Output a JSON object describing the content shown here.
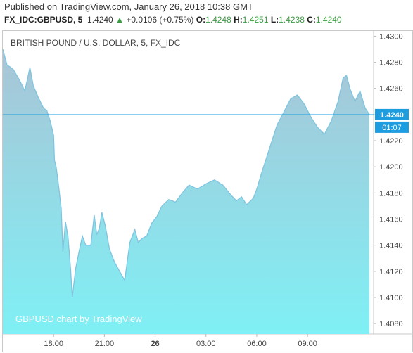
{
  "header": {
    "published": "Published on TradingView.com, January 26, 2018 10:38 GMT",
    "symbol": "FX_IDC:GBPUSD, 5",
    "last": "1.4240",
    "change_arrow": "▲",
    "change": "+0.0106 (+0.75%)",
    "o_label": "O:",
    "o_value": "1.4248",
    "h_label": "H:",
    "h_value": "1.4251",
    "l_label": "L:",
    "l_value": "1.4238",
    "c_label": "C:",
    "c_value": "1.4240"
  },
  "colors": {
    "line": "#7fc4df",
    "fill_top": "#a9c4d6",
    "fill_bottom": "#7ff0f5",
    "price_badge": "#1e9ce0",
    "up": "#3a9c43"
  },
  "watermark": "GBPUSD chart by TradingView",
  "chart_data": {
    "type": "area",
    "title": "BRITISH POUND / U.S. DOLLAR, 5, FX_IDC",
    "x_ticks": [
      "18:00",
      "21:00",
      "26",
      "03:00",
      "06:00",
      "09:00"
    ],
    "y_ticks": [
      "1.4300",
      "1.4280",
      "1.4260",
      "1.4240",
      "1.4220",
      "1.4200",
      "1.4180",
      "1.4160",
      "1.4140",
      "1.4120",
      "1.4100",
      "1.4080"
    ],
    "ylim": [
      1.4072,
      1.4304
    ],
    "xlim_hours_from_start": [
      0,
      21.9
    ],
    "current_price": "1.4240",
    "countdown": "01:07",
    "series": [
      {
        "x_hours": [
          0,
          0.25,
          0.6,
          1.0,
          1.3,
          1.6,
          1.8,
          2.1,
          2.4,
          2.6,
          2.8,
          3.0,
          3.05,
          3.15,
          3.3,
          3.45,
          3.55,
          3.7,
          3.85,
          4.0,
          4.1,
          4.3,
          4.5,
          4.7,
          4.9,
          5.2,
          5.4,
          5.55,
          5.7,
          5.85,
          6.05,
          6.3,
          6.6,
          6.9,
          7.2,
          7.5,
          7.8,
          8.0,
          8.2,
          8.5,
          8.8,
          9.1,
          9.4,
          9.8,
          10.2,
          10.6,
          11.0,
          11.5,
          12.0,
          12.5,
          13.0,
          13.5,
          13.8,
          14.1,
          14.4,
          14.8,
          15.0,
          15.3,
          15.6,
          15.9,
          16.2,
          16.6,
          17.0,
          17.4,
          17.8,
          18.2,
          18.6,
          19.0,
          19.4,
          19.8,
          20.1,
          20.3,
          20.5,
          20.8,
          21.1,
          21.4,
          21.65
        ],
        "values": [
          1.429,
          1.4278,
          1.4275,
          1.4266,
          1.4258,
          1.4276,
          1.4262,
          1.4253,
          1.4245,
          1.4243,
          1.4235,
          1.4224,
          1.4205,
          1.42,
          1.4185,
          1.4168,
          1.4135,
          1.4158,
          1.4147,
          1.4122,
          1.41,
          1.4122,
          1.4135,
          1.4147,
          1.414,
          1.414,
          1.4163,
          1.4148,
          1.4153,
          1.4165,
          1.4155,
          1.4137,
          1.4127,
          1.412,
          1.4113,
          1.4142,
          1.4152,
          1.4142,
          1.4145,
          1.4147,
          1.4157,
          1.4162,
          1.417,
          1.4175,
          1.4173,
          1.418,
          1.4186,
          1.4183,
          1.4187,
          1.419,
          1.4186,
          1.4178,
          1.4174,
          1.4177,
          1.4171,
          1.4176,
          1.4183,
          1.4196,
          1.4208,
          1.422,
          1.4232,
          1.4242,
          1.4252,
          1.4255,
          1.4248,
          1.4238,
          1.423,
          1.4225,
          1.4235,
          1.425,
          1.4268,
          1.427,
          1.426,
          1.425,
          1.4258,
          1.4245,
          1.424
        ]
      }
    ]
  }
}
